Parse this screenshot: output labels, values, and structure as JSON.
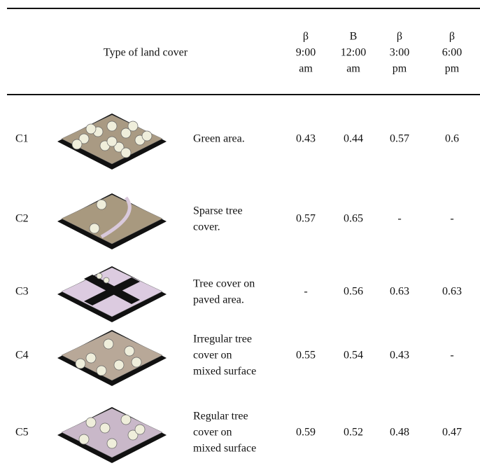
{
  "header": {
    "title": "Type of land cover",
    "columns": [
      {
        "symbol": "β",
        "time": "9:00",
        "period": "am"
      },
      {
        "symbol": "B",
        "time": "12:00",
        "period": "am"
      },
      {
        "symbol": "β",
        "time": "3:00",
        "period": "pm"
      },
      {
        "symbol": "β",
        "time": "6:00",
        "period": "pm"
      }
    ]
  },
  "table": {
    "rows": [
      {
        "id": "C1",
        "description": [
          "Green area."
        ],
        "values": [
          0.43,
          0.44,
          0.57,
          0.6
        ]
      },
      {
        "id": "C2",
        "description": [
          "Sparse tree",
          "cover."
        ],
        "values": [
          0.57,
          0.65,
          "-",
          "-"
        ]
      },
      {
        "id": "C3",
        "description": [
          "Tree cover on",
          "paved area."
        ],
        "values": [
          "-",
          0.56,
          0.63,
          0.63
        ]
      },
      {
        "id": "C4",
        "description": [
          "Irregular tree",
          "cover on",
          "mixed surface"
        ],
        "values": [
          0.55,
          0.54,
          0.43,
          "-"
        ]
      },
      {
        "id": "C5",
        "description": [
          "Regular tree",
          "cover on",
          "mixed surface"
        ],
        "values": [
          0.59,
          0.52,
          0.48,
          0.47
        ]
      }
    ]
  }
}
